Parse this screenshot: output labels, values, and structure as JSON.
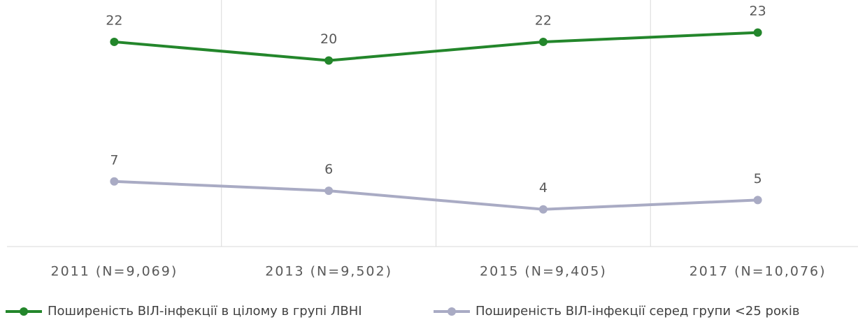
{
  "chart_data": {
    "type": "line",
    "categories": [
      "2011 (N=9,069)",
      "2013 (N=9,502)",
      "2015 (N=9,405)",
      "2017 (N=10,076)"
    ],
    "series": [
      {
        "name": "Поширеність ВІЛ-інфекції в цілому в групі ЛВНІ",
        "color": "#23862b",
        "values": [
          22,
          20,
          22,
          23
        ]
      },
      {
        "name": "Поширеність ВІЛ-інфекції серед групи <25 років",
        "color": "#a9abc4",
        "values": [
          7,
          6,
          4,
          5
        ]
      }
    ],
    "ylim": [
      0,
      26.5
    ],
    "legend": "bottom"
  }
}
